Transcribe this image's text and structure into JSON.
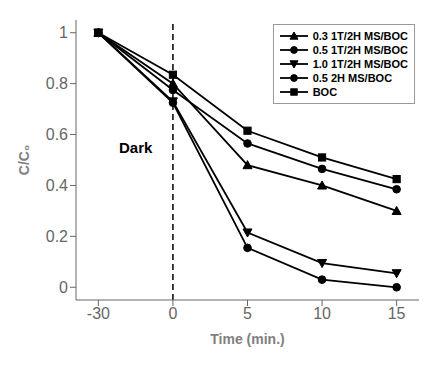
{
  "chart_data": {
    "type": "line",
    "x_label": "Time (min.)",
    "y_label": "C/C₀",
    "categories": [
      "-30",
      "0",
      "5",
      "10",
      "15"
    ],
    "series": [
      {
        "name": "0.3 1T/2H MS/BOC",
        "color": "#000000",
        "marker": "triangle_up",
        "values": [
          1.0,
          0.8,
          0.48,
          0.4,
          0.3
        ]
      },
      {
        "name": "0.5 1T/2H MS/BOC",
        "color": "#000000",
        "marker": "circle",
        "values": [
          1.0,
          0.775,
          0.565,
          0.465,
          0.385
        ]
      },
      {
        "name": "1.0 1T/2H MS/BOC",
        "color": "#000000",
        "marker": "triangle_down",
        "values": [
          1.0,
          0.73,
          0.215,
          0.095,
          0.055
        ]
      },
      {
        "name": "0.5 2H MS/BOC",
        "color": "#000000",
        "marker": "circle",
        "values": [
          1.0,
          0.725,
          0.155,
          0.03,
          0.0
        ]
      },
      {
        "name": "BOC",
        "color": "#000000",
        "marker": "square",
        "values": [
          1.0,
          0.835,
          0.615,
          0.51,
          0.425
        ]
      }
    ],
    "ylim": [
      -0.05,
      1.05
    ],
    "yticks": [
      0.0,
      0.2,
      0.4,
      0.6,
      0.8,
      1.0
    ],
    "vline": {
      "x": "0",
      "line_style": "dashed",
      "color": "#000000"
    },
    "annotations": [
      {
        "text": "Dark",
        "y": 0.55
      }
    ],
    "legend": "upper right",
    "grid": false
  }
}
